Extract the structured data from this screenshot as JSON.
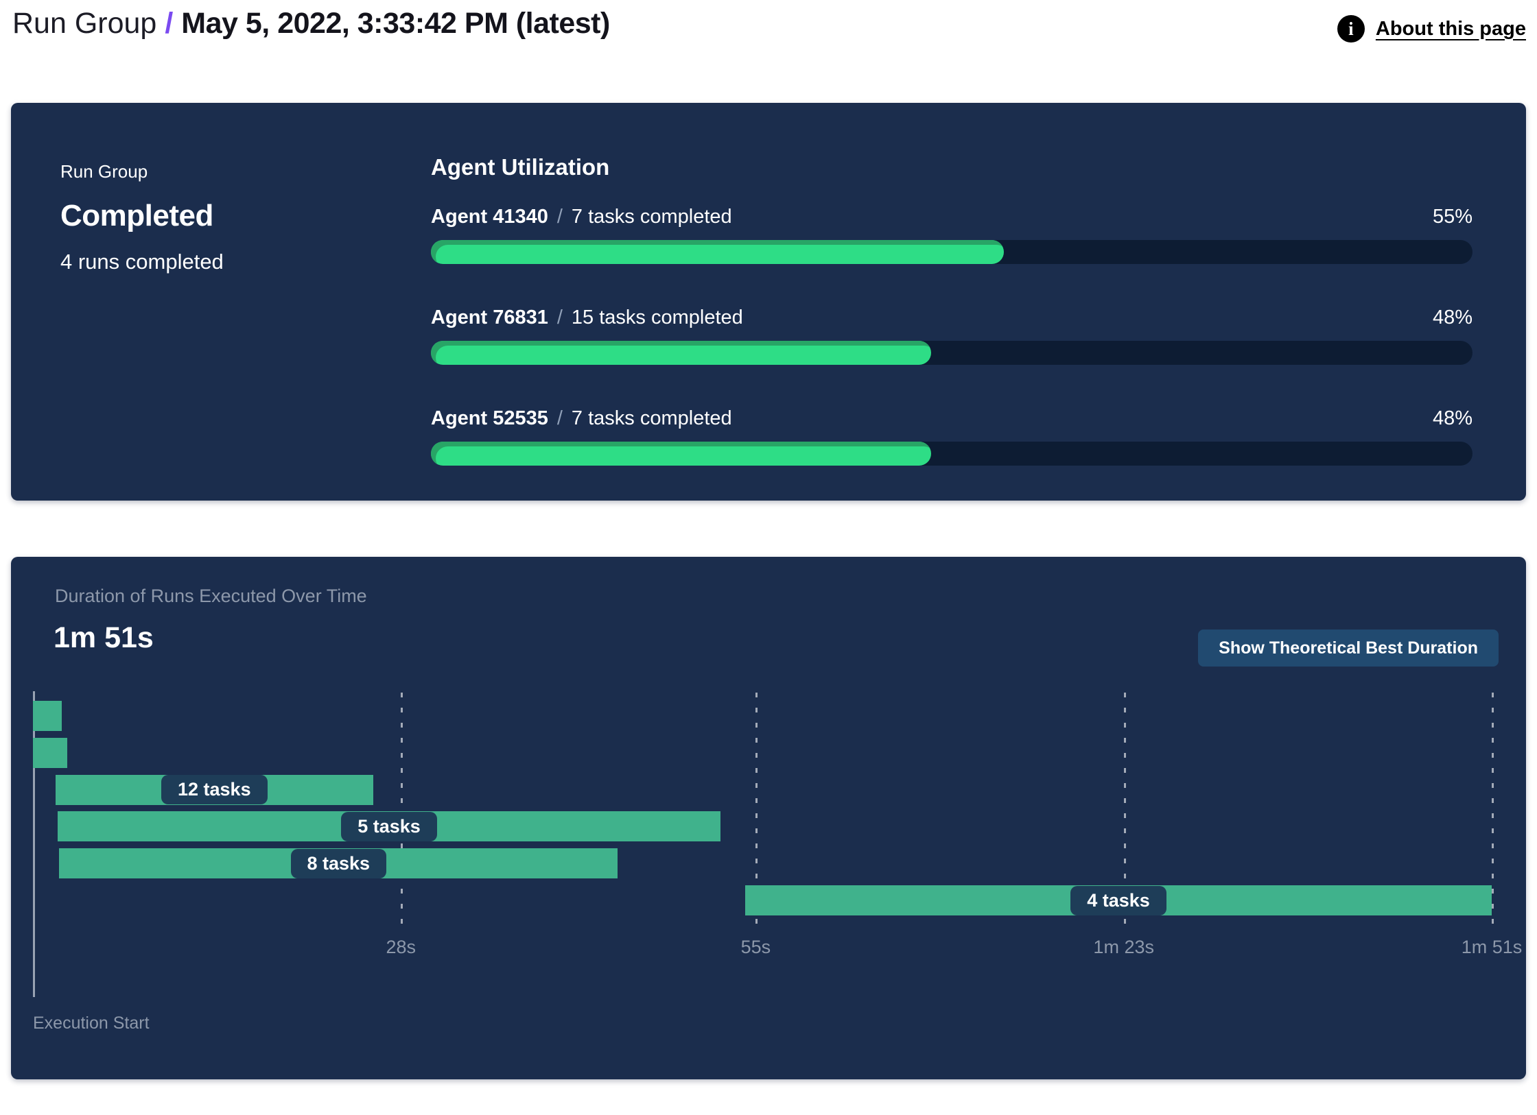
{
  "header": {
    "breadcrumb_root": "Run Group",
    "separator": "/",
    "title": "May 5, 2022, 3:33:42 PM (latest)",
    "about_link": "About this page"
  },
  "summary": {
    "panel_label": "Run Group",
    "status": "Completed",
    "runs_completed": "4 runs completed"
  },
  "agent_utilization": {
    "title": "Agent Utilization",
    "separator": "/",
    "agents": [
      {
        "name": "Agent 41340",
        "tasks": "7 tasks completed",
        "pct": 55,
        "pct_label": "55%"
      },
      {
        "name": "Agent 76831",
        "tasks": "15 tasks completed",
        "pct": 48,
        "pct_label": "48%"
      },
      {
        "name": "Agent 52535",
        "tasks": "7 tasks completed",
        "pct": 48,
        "pct_label": "48%"
      }
    ]
  },
  "duration_section": {
    "title": "Duration of Runs Executed Over Time",
    "total_label": "1m 51s",
    "button_label": "Show Theoretical Best Duration",
    "axis_label": "Execution Start"
  },
  "chart_data": {
    "type": "bar",
    "subtype": "gantt-timeline",
    "title": "Duration of Runs Executed Over Time",
    "xlabel": "Execution Start",
    "x_unit": "seconds",
    "xlim": [
      0,
      111
    ],
    "grid": "dashed-vertical",
    "x_ticks": [
      {
        "t": 28,
        "label": "28s"
      },
      {
        "t": 55,
        "label": "55s"
      },
      {
        "t": 83,
        "label": "1m 23s"
      },
      {
        "t": 111,
        "label": "1m 51s"
      }
    ],
    "bars": [
      {
        "row": 0,
        "start_s": 0,
        "end_s": 2.2,
        "label": ""
      },
      {
        "row": 1,
        "start_s": 0,
        "end_s": 2.6,
        "label": ""
      },
      {
        "row": 2,
        "start_s": 1.7,
        "end_s": 25.9,
        "label": "12 tasks"
      },
      {
        "row": 3,
        "start_s": 1.9,
        "end_s": 52.3,
        "label": "5 tasks"
      },
      {
        "row": 4,
        "start_s": 2.0,
        "end_s": 44.5,
        "label": "8 tasks"
      },
      {
        "row": 5,
        "start_s": 54.2,
        "end_s": 111,
        "label": "4 tasks"
      }
    ]
  },
  "colors": {
    "panel_bg": "#1b2d4d",
    "progress_fill": "#2edd86",
    "progress_fill_edge": "#28a566",
    "progress_track": "#0d1c33",
    "gantt_bar": "#40b28c",
    "pill_bg": "#1e3d58",
    "button_bg": "#214a70",
    "muted_text": "#8d98aa",
    "accent_purple": "#7a4af0"
  }
}
